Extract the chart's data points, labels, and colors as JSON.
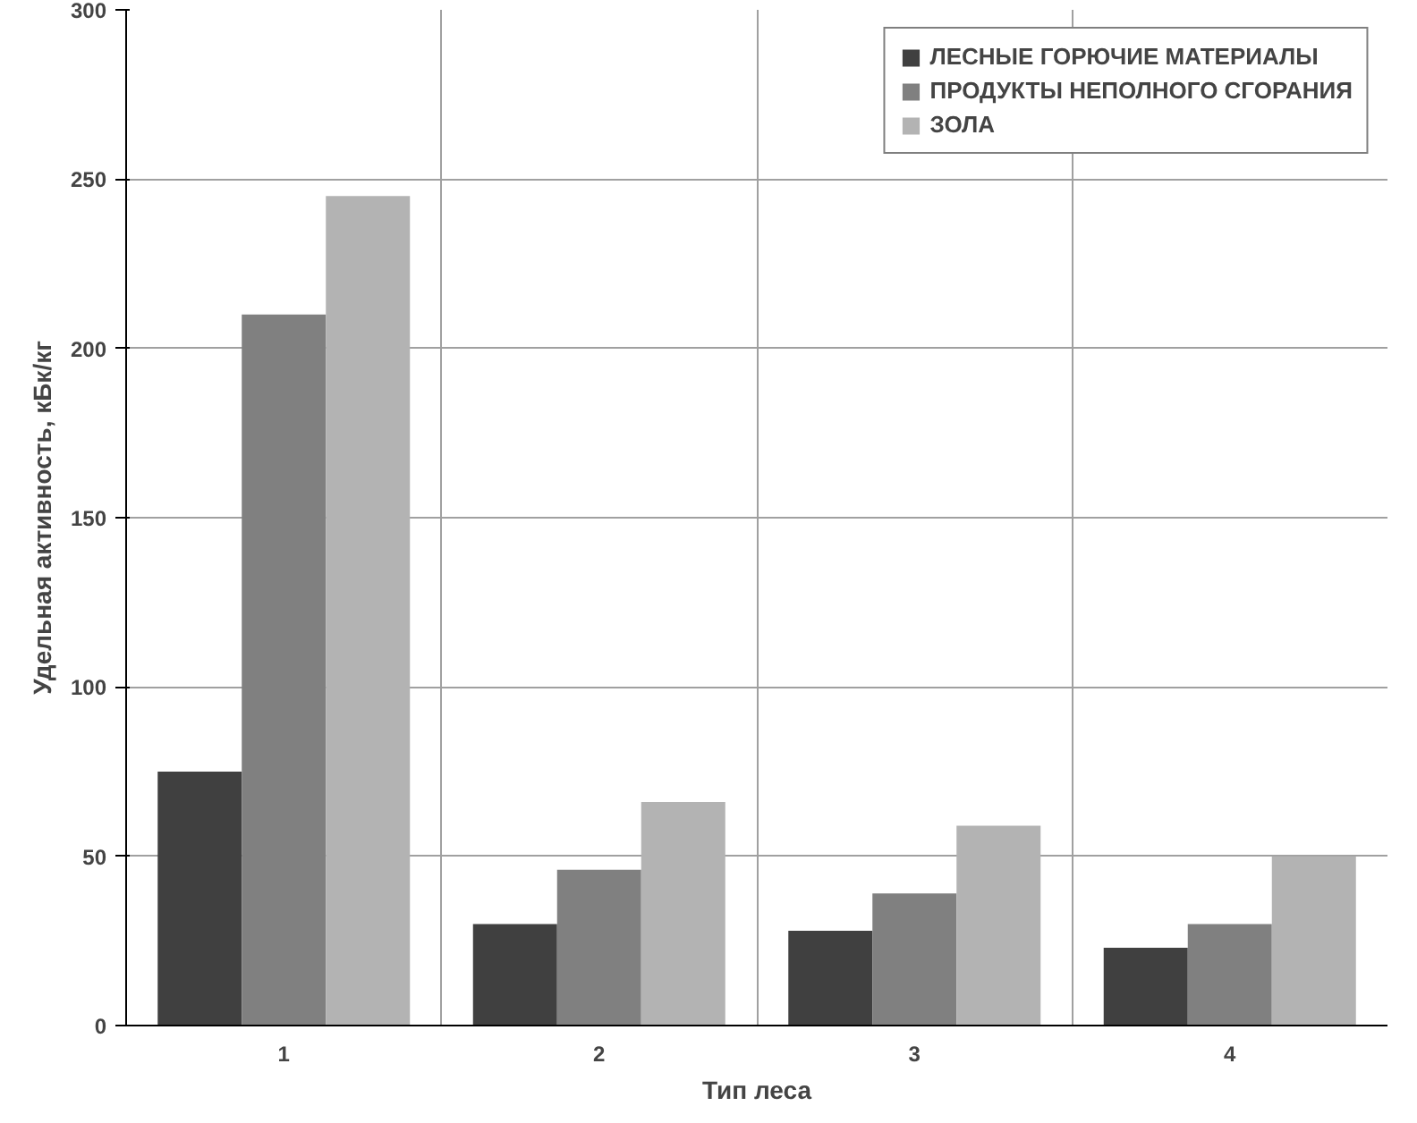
{
  "chart_data": {
    "type": "bar",
    "xlabel": "Тип леса",
    "ylabel": "Удельная активность, кБк/кг",
    "categories": [
      "1",
      "2",
      "3",
      "4"
    ],
    "series": [
      {
        "name": "ЛЕСНЫЕ ГОРЮЧИЕ МАТЕРИАЛЫ",
        "color": "#404040",
        "values": [
          75,
          30,
          28,
          23
        ]
      },
      {
        "name": "ПРОДУКТЫ НЕПОЛНОГО СГОРАНИЯ",
        "color": "#808080",
        "values": [
          210,
          46,
          39,
          30
        ]
      },
      {
        "name": "ЗОЛА",
        "color": "#b3b3b3",
        "values": [
          245,
          66,
          59,
          50
        ]
      }
    ],
    "ylim": [
      0,
      300
    ],
    "yticks": [
      0,
      50,
      100,
      150,
      200,
      250,
      300
    ],
    "grid": true,
    "legend": "top right"
  }
}
